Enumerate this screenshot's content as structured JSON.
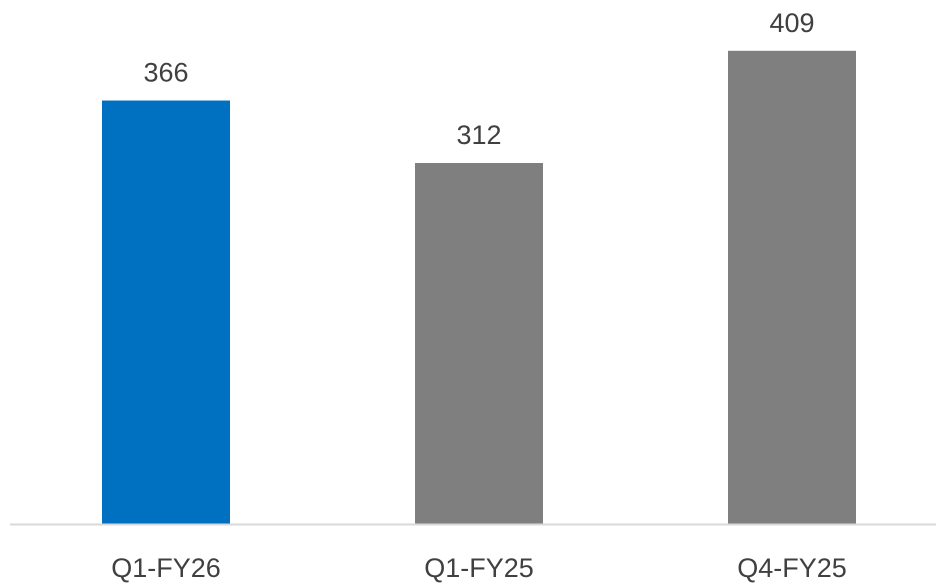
{
  "chart_data": {
    "type": "bar",
    "title": "",
    "xlabel": "",
    "ylabel": "",
    "categories": [
      "Q1-FY26",
      "Q1-FY25",
      "Q4-FY25"
    ],
    "values": [
      366,
      312,
      409
    ],
    "data_labels": [
      "366",
      "312",
      "409"
    ],
    "bar_colors": [
      "#0070C0",
      "#7F7F7F",
      "#7F7F7F"
    ],
    "axis_color": "#D9D9D9",
    "grid": false,
    "legend": "none"
  }
}
